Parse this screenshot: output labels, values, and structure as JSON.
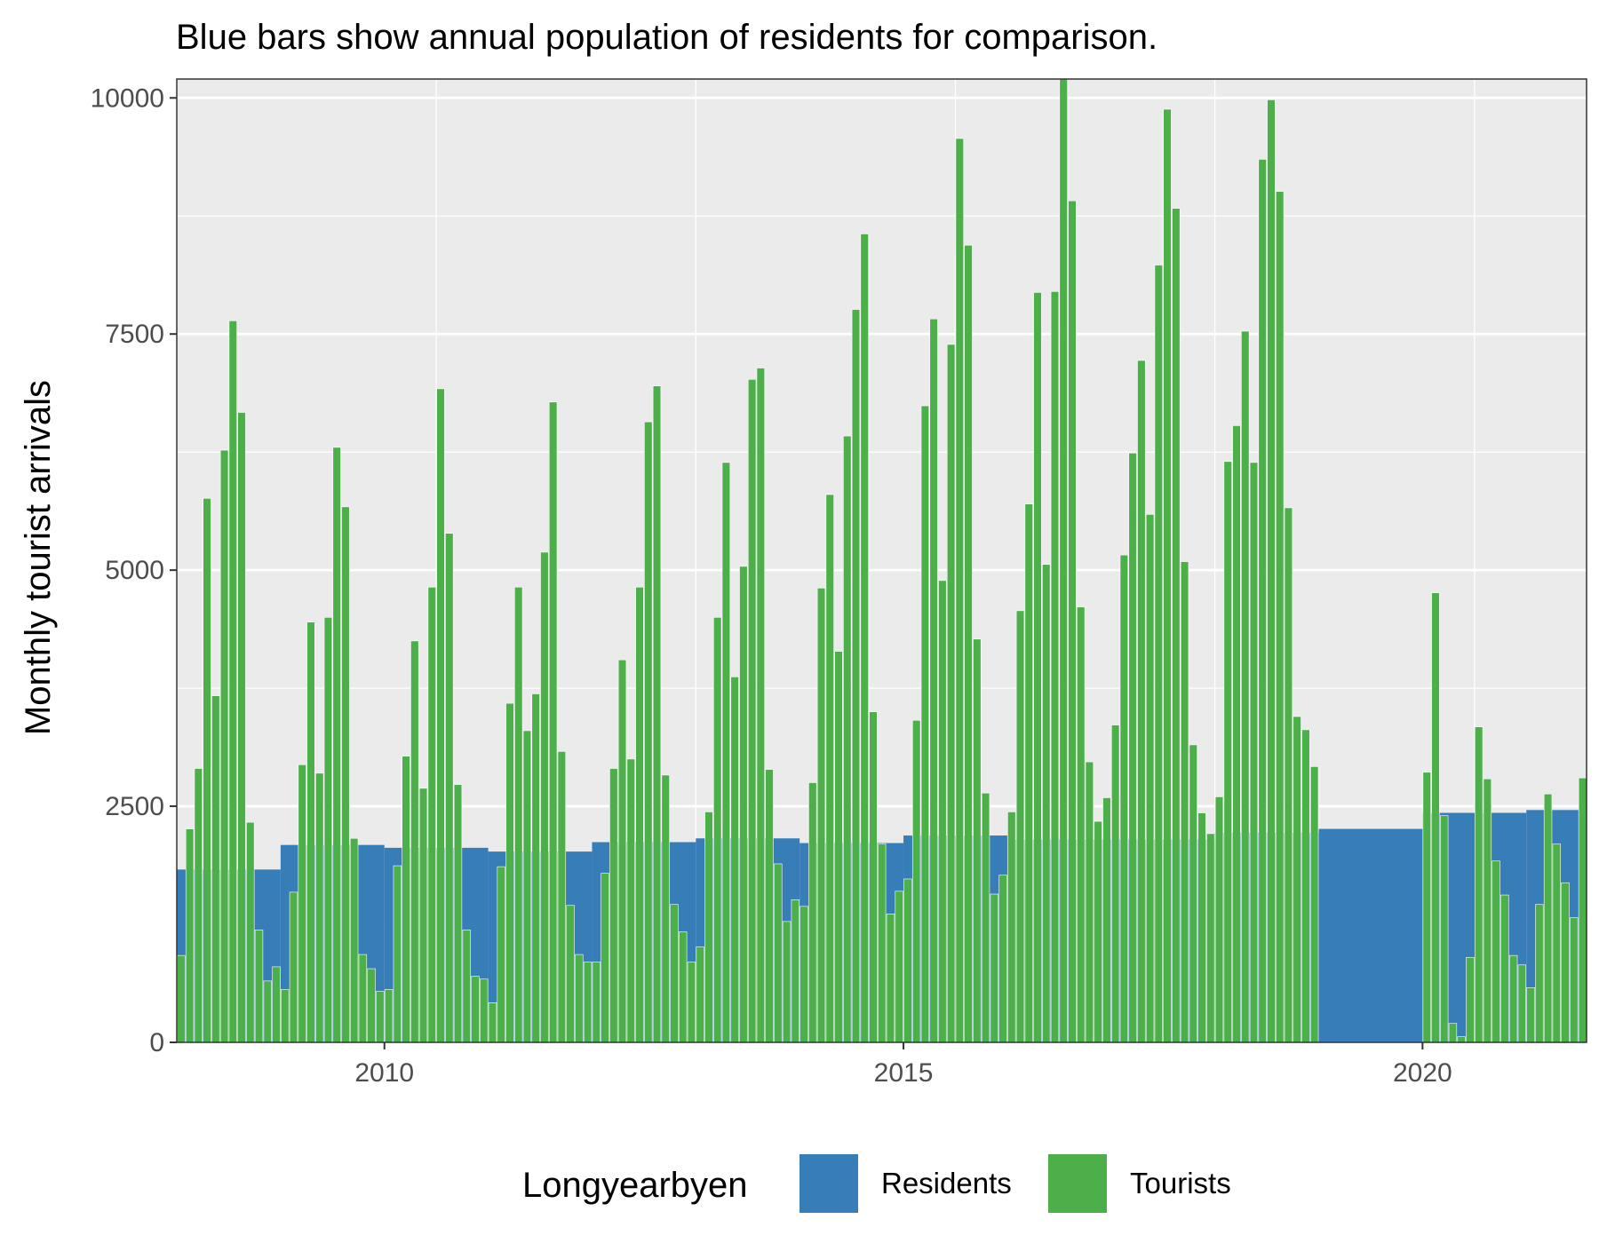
{
  "chart_data": {
    "type": "bar",
    "title": "Blue bars show annual population of residents for comparison.",
    "xlabel": "",
    "ylabel": "Monthly tourist arrivals",
    "xlim": [
      2008.0,
      2021.58
    ],
    "ylim": [
      0,
      10200
    ],
    "x_ticks": [
      2010,
      2015,
      2020
    ],
    "y_ticks": [
      0,
      2500,
      5000,
      7500,
      10000
    ],
    "grid": true,
    "panel_background": "#ebebeb",
    "legend": {
      "title": "Longyearbyen",
      "placement": "bottom",
      "entries": [
        {
          "label": "Residents",
          "color": "#377eb8"
        },
        {
          "label": "Tourists",
          "color": "#4daf4a"
        }
      ]
    },
    "series": [
      {
        "name": "Tourists",
        "color": "#4daf4a",
        "monthly": [
          {
            "year": 2008,
            "values": [
              920,
              2260,
              2900,
              5760,
              3670,
              6270,
              7640,
              6670,
              2330,
              1190,
              650,
              800
            ]
          },
          {
            "year": 2009,
            "values": [
              560,
              1590,
              2940,
              4450,
              2850,
              4500,
              6300,
              5670,
              2160,
              930,
              780,
              540
            ]
          },
          {
            "year": 2010,
            "values": [
              560,
              1870,
              3030,
              4250,
              2690,
              4820,
              6920,
              5390,
              2730,
              1190,
              700,
              670
            ]
          },
          {
            "year": 2011,
            "values": [
              420,
              1860,
              3590,
              4820,
              3300,
              3690,
              5190,
              6780,
              3080,
              1450,
              930,
              850
            ]
          },
          {
            "year": 2012,
            "values": [
              850,
              1790,
              2900,
              4050,
              3000,
              4820,
              6570,
              6950,
              2830,
              1460,
              1170,
              850
            ]
          },
          {
            "year": 2013,
            "values": [
              1010,
              2440,
              4500,
              6140,
              3870,
              5040,
              7020,
              7140,
              2890,
              1890,
              1280,
              1510
            ]
          },
          {
            "year": 2014,
            "values": [
              1440,
              2750,
              4810,
              5800,
              4140,
              6420,
              7760,
              8560,
              3500,
              2100,
              1360,
              1600
            ]
          },
          {
            "year": 2015,
            "values": [
              1730,
              3410,
              6740,
              7660,
              4890,
              7390,
              9570,
              8440,
              4270,
              2640,
              1570,
              1770
            ]
          },
          {
            "year": 2016,
            "values": [
              2440,
              4570,
              5700,
              7940,
              5060,
              7950,
              10200,
              8910,
              4610,
              2970,
              2340,
              2590
            ]
          },
          {
            "year": 2017,
            "values": [
              3360,
              5160,
              6240,
              7220,
              5590,
              8230,
              9880,
              8830,
              5090,
              3150,
              2430,
              2210
            ]
          },
          {
            "year": 2018,
            "values": [
              2600,
              6150,
              6530,
              7530,
              6140,
              9350,
              9980,
              9010,
              5660,
              3450,
              3310,
              2920
            ]
          },
          {
            "year": 2020,
            "values": [
              2860,
              4760,
              2400,
              200,
              60,
              900,
              3340,
              2790,
              1920,
              1560,
              920,
              820
            ]
          },
          {
            "year": 2021,
            "values": [
              580,
              1460,
              2630,
              2100,
              1690,
              1320,
              2800
            ]
          }
        ]
      },
      {
        "name": "Residents",
        "color": "#377eb8",
        "annual": [
          {
            "year": 2008,
            "value": 1830
          },
          {
            "year": 2009,
            "value": 2090
          },
          {
            "year": 2010,
            "value": 2060
          },
          {
            "year": 2011,
            "value": 2020
          },
          {
            "year": 2012,
            "value": 2120
          },
          {
            "year": 2013,
            "value": 2160
          },
          {
            "year": 2014,
            "value": 2110
          },
          {
            "year": 2015,
            "value": 2190
          },
          {
            "year": 2016,
            "value": 2150
          },
          {
            "year": 2017,
            "value": 2150
          },
          {
            "year": 2018,
            "value": 2220
          },
          {
            "year": 2019,
            "value": 2260
          },
          {
            "year": 2020,
            "value": 2430
          },
          {
            "year": 2021,
            "value": 2460
          }
        ]
      }
    ]
  }
}
